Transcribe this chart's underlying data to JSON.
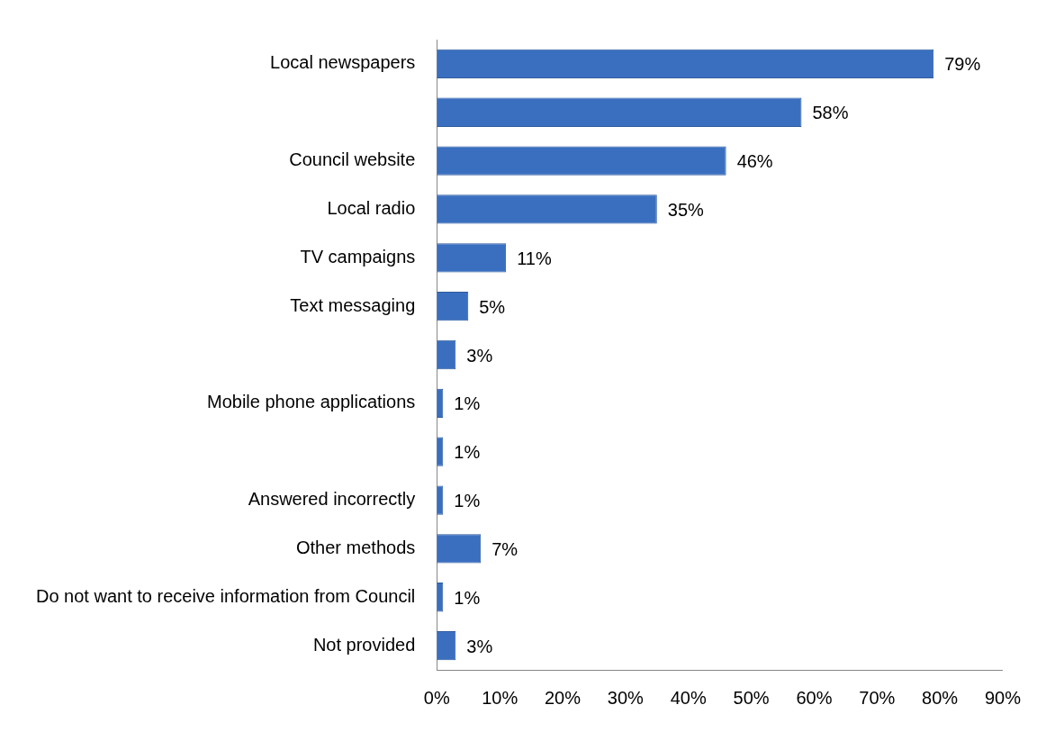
{
  "chart_data": {
    "type": "bar",
    "orientation": "horizontal",
    "categories": [
      "Local newspapers",
      null,
      "Council website",
      "Local radio",
      "TV campaigns",
      "Text messaging",
      null,
      "Mobile phone applications",
      null,
      "Answered incorrectly",
      "Other methods",
      "Do not want to receive information from Council",
      "Not provided"
    ],
    "values": [
      79,
      58,
      46,
      35,
      11,
      5,
      3,
      1,
      1,
      1,
      7,
      1,
      3
    ],
    "value_labels": [
      "79%",
      "58%",
      "46%",
      "35%",
      "11%",
      "5%",
      "3%",
      "1%",
      "1%",
      "1%",
      "7%",
      "1%",
      "3%"
    ],
    "color": "#3a6fc0",
    "xlim": [
      0,
      90
    ],
    "xticks": [
      {
        "value": 0,
        "label": "0%"
      },
      {
        "value": 10,
        "label": "10%"
      },
      {
        "value": 20,
        "label": "20%"
      },
      {
        "value": 30,
        "label": "30%"
      },
      {
        "value": 40,
        "label": "40%"
      },
      {
        "value": 50,
        "label": "50%"
      },
      {
        "value": 60,
        "label": "60%"
      },
      {
        "value": 70,
        "label": "70%"
      },
      {
        "value": 80,
        "label": "80%"
      },
      {
        "value": 90,
        "label": "90%"
      }
    ],
    "grid": false,
    "legend": false
  }
}
